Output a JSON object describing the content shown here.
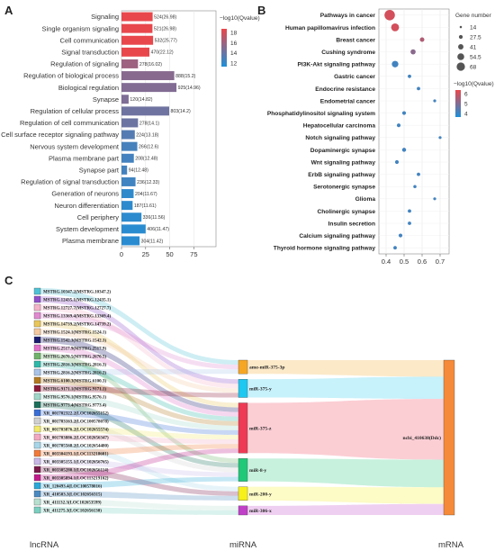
{
  "panels": {
    "a": "A",
    "b": "B",
    "c": "C"
  },
  "chart_data": [
    {
      "type": "bar",
      "orientation": "horizontal",
      "categories": [
        "Signaling",
        "Single organism signaling",
        "Cell communication",
        "Signal transduction",
        "Regulation of signaling",
        "Regulation of biological process",
        "Biological regulation",
        "Synapse",
        "Regulation of cellular process",
        "Regulation of cell communication",
        "Cell surface receptor signaling pathway",
        "Nervous system development",
        "Plasma membrane part",
        "Synapse part",
        "Regulation of signal transduction",
        "Generation of neurons",
        "Neuron differentiation",
        "Cell periphery",
        "System development",
        "Plasma membrane"
      ],
      "values": [
        524,
        521,
        532,
        470,
        278,
        888,
        925,
        120,
        803,
        278,
        224,
        266,
        208,
        94,
        236,
        204,
        187,
        336,
        406,
        304
      ],
      "neg_log10_q": [
        26.98,
        26.98,
        25.77,
        22.12,
        16.02,
        15.2,
        14.96,
        14.82,
        14.2,
        14.1,
        13.18,
        12.6,
        12.48,
        12.48,
        12.33,
        11.67,
        11.61,
        11.56,
        11.47,
        11.42
      ],
      "value_labels": [
        "524(26.98)",
        "521(26.98)",
        "532(25.77)",
        "470(22.12)",
        "278(16.02)",
        "888(15.2)",
        "925(14.96)",
        "120(14.82)",
        "803(14.2)",
        "278(14.1)",
        "224(13.18)",
        "266(12.6)",
        "208(12.48)",
        "94(12.48)",
        "236(12.33)",
        "204(11.67)",
        "187(11.61)",
        "336(11.56)",
        "406(11.47)",
        "304(11.42)"
      ],
      "x_ticks": [
        "0",
        "25",
        "50",
        "75"
      ],
      "x_tick_values": [
        0,
        25,
        50,
        75
      ],
      "color_legend": {
        "title": "−log10(Qvalue)",
        "ticks": [
          "18",
          "16",
          "14",
          "12"
        ],
        "low_color": "#1e90d8",
        "high_color": "#e8474c"
      },
      "grid": true
    },
    {
      "type": "scatter",
      "categories": [
        "Pathways in cancer",
        "Human papillomavirus infection",
        "Breast cancer",
        "Cushing syndrome",
        "PI3K-Akt signaling pathway",
        "Gastric cancer",
        "Endocrine resistance",
        "Endometrial cancer",
        "Phosphatidylinositol signaling system",
        "Hepatocellular carcinoma",
        "Notch signaling pathway",
        "Dopaminergic synapse",
        "Wnt signaling pathway",
        "ErbB signaling pathway",
        "Serotonergic synapse",
        "Glioma",
        "Cholinergic synapse",
        "Insulin secretion",
        "Calcium signaling pathway",
        "Thyroid hormone signaling pathway"
      ],
      "x": [
        0.42,
        0.45,
        0.6,
        0.55,
        0.45,
        0.53,
        0.58,
        0.67,
        0.5,
        0.47,
        0.7,
        0.5,
        0.46,
        0.58,
        0.56,
        0.67,
        0.53,
        0.53,
        0.48,
        0.45
      ],
      "gene_number": [
        68,
        50,
        25,
        30,
        40,
        18,
        18,
        14,
        20,
        20,
        14,
        22,
        20,
        18,
        16,
        14,
        18,
        18,
        20,
        18
      ],
      "neg_log10_q": [
        6,
        6,
        5.5,
        5,
        4,
        4,
        4,
        4,
        4,
        4,
        4,
        4,
        4,
        4,
        4,
        4,
        4,
        4,
        4,
        4
      ],
      "x_ticks": [
        "0.4",
        "0.5",
        "0.6",
        "0.7"
      ],
      "x_tick_values": [
        0.4,
        0.5,
        0.6,
        0.7
      ],
      "xlim": [
        0.36,
        0.75
      ],
      "size_legend": {
        "title": "Gene number",
        "values": [
          "14",
          "27.5",
          "41",
          "54.5",
          "68"
        ]
      },
      "color_legend": {
        "title": "−log10(Qvalue)",
        "ticks": [
          "6",
          "5",
          "4"
        ],
        "low_color": "#1e90d8",
        "high_color": "#e8474c"
      },
      "grid": true
    },
    {
      "type": "sankey",
      "stage_labels": [
        "lncRNA",
        "miRNA",
        "mRNA"
      ],
      "lncrnas": [
        {
          "label": "MSTRG.10347.2(MSTRG.10347.2)",
          "color": "#4fc3d6",
          "target": 0
        },
        {
          "label": "MSTRG.12435.1(MSTRG.12435.1)",
          "color": "#8e4fc9",
          "target": 1
        },
        {
          "label": "MSTRG.12727.7(MSTRG.12727.7)",
          "color": "#f3b3c8",
          "target": 1
        },
        {
          "label": "MSTRG.13369.4(MSTRG.13369.4)",
          "color": "#e08ad0",
          "target": 0
        },
        {
          "label": "MSTRG.14739.2(MSTRG.14739.2)",
          "color": "#e8c65a",
          "target": 2
        },
        {
          "label": "MSTRG.1524.1(MSTRG.1524.1)",
          "color": "#f5c9a0",
          "target": 1
        },
        {
          "label": "MSTRG.1542.3(MSTRG.1542.3)",
          "color": "#1a1a6e",
          "target": 2
        },
        {
          "label": "MSTRG.2517.9(MSTRG.2517.9)",
          "color": "#e070c8",
          "target": 2
        },
        {
          "label": "MSTRG.2670.5(MSTRG.2670.5)",
          "color": "#6fb36a",
          "target": 3
        },
        {
          "label": "MSTRG.2816.3(MSTRG.2816.3)",
          "color": "#2eb8a8",
          "target": 2
        },
        {
          "label": "MSTRG.2816.2(MSTRG.2816.2)",
          "color": "#a9c4e8",
          "target": 0
        },
        {
          "label": "MSTRG.6100.3(MSTRG.6100.3)",
          "color": "#b37a20",
          "target": 2
        },
        {
          "label": "MSTRG.9171.1(MSTRG.9171.1)",
          "color": "#8b1a3a",
          "target": 1
        },
        {
          "label": "MSTRG.9576.1(MSTRG.9576.1)",
          "color": "#9fd6c8",
          "target": 2
        },
        {
          "label": "MSTRG.9773.4(MSTRG.9773.4)",
          "color": "#1a6e5a",
          "target": 3
        },
        {
          "label": "XR_001702322.2(LOC102655152)",
          "color": "#3a6ed6",
          "target": 2
        },
        {
          "label": "XR_001703163.2(LOC100578078)",
          "color": "#d0d0d0",
          "target": 3
        },
        {
          "label": "XR_001703876.2(LOC102655574)",
          "color": "#f2e96a",
          "target": 2
        },
        {
          "label": "XR_001703886.2(LOC102656347)",
          "color": "#f2a8c0",
          "target": 2
        },
        {
          "label": "XR_001705568.2(LOC102654480)",
          "color": "#a7d6e8",
          "target": 4
        },
        {
          "label": "XR_003304193.1(LOC113218601)",
          "color": "#f07a3a",
          "target": 2
        },
        {
          "label": "XR_003305155.1(LOC102656765)",
          "color": "#c8b8e8",
          "target": 3
        },
        {
          "label": "XR_003305280.1(LOC102656114)",
          "color": "#7a1a4a",
          "target": 4
        },
        {
          "label": "XR_003305894.1(LOC113219162)",
          "color": "#c01a8a",
          "target": 2
        },
        {
          "label": "XR_120493.4(LOC100578016)",
          "color": "#2aa8d8",
          "target": 3
        },
        {
          "label": "XR_410503.3(LOC102656315)",
          "color": "#4a8ac0",
          "target": 4
        },
        {
          "label": "XR_411132.3(LOC102653599)",
          "color": "#b8e0d0",
          "target": 5
        },
        {
          "label": "XR_411275.3(LOC102656130)",
          "color": "#7ad0c0",
          "target": 5
        }
      ],
      "mirnas": [
        {
          "label": "ame-miR-375-3p",
          "color": "#f5a623"
        },
        {
          "label": "miR-375-y",
          "color": "#1ec8f0"
        },
        {
          "label": "miR-375-z",
          "color": "#ee3a55"
        },
        {
          "label": "miR-8-y",
          "color": "#20c878"
        },
        {
          "label": "miR-200-y",
          "color": "#f7f01a"
        },
        {
          "label": "miR-306-x",
          "color": "#c040c8"
        }
      ],
      "mrna": {
        "label": "ncbi_410638(Ddc)",
        "color": "#f58a3a"
      }
    }
  ]
}
